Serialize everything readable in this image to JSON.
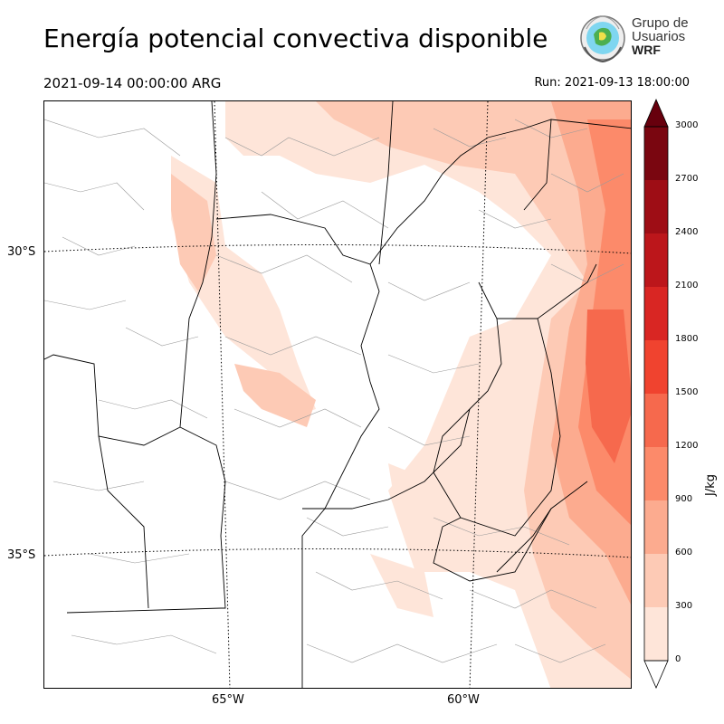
{
  "header": {
    "title": "Energía potencial convectiva disponible",
    "valid_time": "2021-09-14 00:00:00 ARG",
    "run_time": "Run: 2021-09-13 18:00:00"
  },
  "logo": {
    "line1": "Grupo de",
    "line2": "Usuarios",
    "line3": "WRF"
  },
  "map": {
    "variable": "CAPE",
    "lat_labels": [
      "30°S",
      "35°S"
    ],
    "lon_labels": [
      "65°W",
      "60°W"
    ]
  },
  "colorbar": {
    "unit": "J/kg",
    "ticks": [
      "3000",
      "2700",
      "2400",
      "2100",
      "1800",
      "1500",
      "1200",
      "900",
      "600",
      "300",
      "0"
    ],
    "colors": [
      "#fee5d9",
      "#fdcab5",
      "#fcab8f",
      "#fc8a6a",
      "#f6694d",
      "#f0432f",
      "#d92623",
      "#bc161b",
      "#9e0d15",
      "#7a0610"
    ],
    "over_color": "#67000d",
    "under_color": "#ffffff"
  }
}
